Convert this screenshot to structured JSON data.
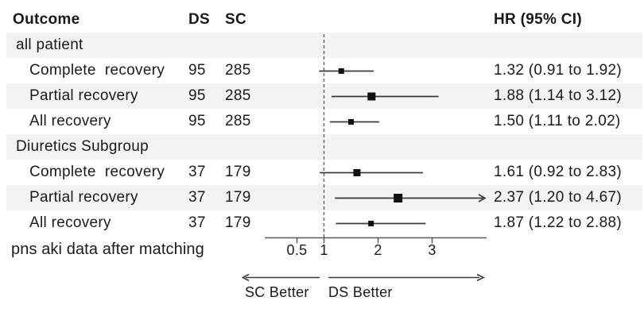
{
  "header": {
    "outcome": "Outcome",
    "ds": "DS",
    "sc": "SC",
    "hr": "HR (95% CI)"
  },
  "footnote": "pns aki data after matching",
  "colors": {
    "band": "#f3f3f3",
    "text": "#1a1a1a",
    "ci_line": "#3a3a3a",
    "axis_line": "#595959",
    "marker": "#111111"
  },
  "chart_data": {
    "type": "forest",
    "x_scale": "linear",
    "xlim": [
      -0.1,
      4.0
    ],
    "ref_value": 1,
    "ticks": [
      0.5,
      1,
      2,
      3
    ],
    "tick_labels": [
      "0.5",
      "1",
      "2",
      "3"
    ],
    "xlabel_left": "SC Better",
    "xlabel_right": "DS Better",
    "columns": [
      "Outcome",
      "DS",
      "SC",
      "HR (95% CI)"
    ],
    "rows": [
      {
        "kind": "group",
        "label": "all patient",
        "ds": "",
        "sc": "",
        "hr_text": ""
      },
      {
        "kind": "item",
        "label": "Complete  recovery",
        "ds": "95",
        "sc": "285",
        "hr": 1.32,
        "lo": 0.91,
        "hi": 1.92,
        "hr_text": "1.32 (0.91 to 1.92)",
        "marker_size": 7,
        "ci_clipped": false
      },
      {
        "kind": "item",
        "label": "Partial recovery",
        "ds": "95",
        "sc": "285",
        "hr": 1.88,
        "lo": 1.14,
        "hi": 3.12,
        "hr_text": "1.88 (1.14 to 3.12)",
        "marker_size": 10,
        "ci_clipped": false
      },
      {
        "kind": "item",
        "label": "All recovery",
        "ds": "95",
        "sc": "285",
        "hr": 1.5,
        "lo": 1.11,
        "hi": 2.02,
        "hr_text": "1.50 (1.11 to 2.02)",
        "marker_size": 7,
        "ci_clipped": false
      },
      {
        "kind": "group",
        "label": "Diuretics Subgroup",
        "ds": "",
        "sc": "",
        "hr_text": ""
      },
      {
        "kind": "item",
        "label": "Complete  recovery",
        "ds": "37",
        "sc": "179",
        "hr": 1.61,
        "lo": 0.92,
        "hi": 2.83,
        "hr_text": "1.61 (0.92 to 2.83)",
        "marker_size": 9,
        "ci_clipped": false
      },
      {
        "kind": "item",
        "label": "Partial recovery",
        "ds": "37",
        "sc": "179",
        "hr": 2.37,
        "lo": 1.2,
        "hi": 4.67,
        "hr_text": "2.37 (1.20 to 4.67)",
        "marker_size": 11,
        "ci_clipped": true
      },
      {
        "kind": "item",
        "label": "All recovery",
        "ds": "37",
        "sc": "179",
        "hr": 1.87,
        "lo": 1.22,
        "hi": 2.88,
        "hr_text": "1.87 (1.22 to 2.88)",
        "marker_size": 7,
        "ci_clipped": false
      }
    ]
  }
}
